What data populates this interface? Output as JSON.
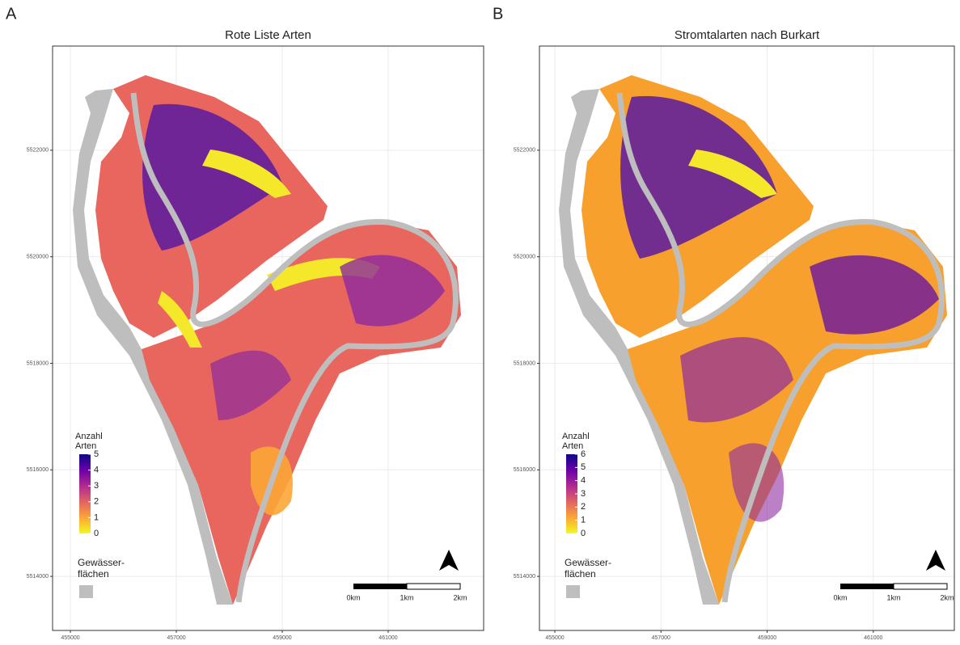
{
  "panels": [
    {
      "letter": "A",
      "title": "Rote Liste Arten",
      "xlim": [
        454664,
        462802
      ],
      "ylim": [
        5512985,
        5523955
      ],
      "xticks": [
        455000,
        457000,
        459000,
        461000
      ],
      "yticks": [
        5514000,
        5516000,
        5518000,
        5520000,
        5522000
      ],
      "legend": {
        "title_lines": [
          "Anzahl",
          "Arten"
        ],
        "range": [
          0,
          5
        ],
        "ticks": [
          0,
          1,
          2,
          3,
          4,
          5
        ]
      },
      "water_legend": {
        "lines": [
          "Gewässer-",
          "flächen"
        ],
        "color": "#bebebe"
      },
      "scale_bar": {
        "labels": [
          "0km",
          "1km",
          "2km"
        ]
      }
    },
    {
      "letter": "B",
      "title": "Stromtalarten nach Burkart",
      "xlim": [
        454710,
        462527
      ],
      "ylim": [
        5512985,
        5523955
      ],
      "xticks": [
        455000,
        457000,
        459000,
        461000
      ],
      "yticks": [
        5514000,
        5516000,
        5518000,
        5520000,
        5522000
      ],
      "legend": {
        "title_lines": [
          "Anzahl",
          "Arten"
        ],
        "range": [
          0,
          6
        ],
        "ticks": [
          0,
          1,
          2,
          3,
          4,
          5,
          6
        ]
      },
      "water_legend": {
        "lines": [
          "Gewässer-",
          "flächen"
        ],
        "color": "#bebebe"
      },
      "scale_bar": {
        "labels": [
          "0km",
          "1km",
          "2km"
        ]
      }
    }
  ]
}
